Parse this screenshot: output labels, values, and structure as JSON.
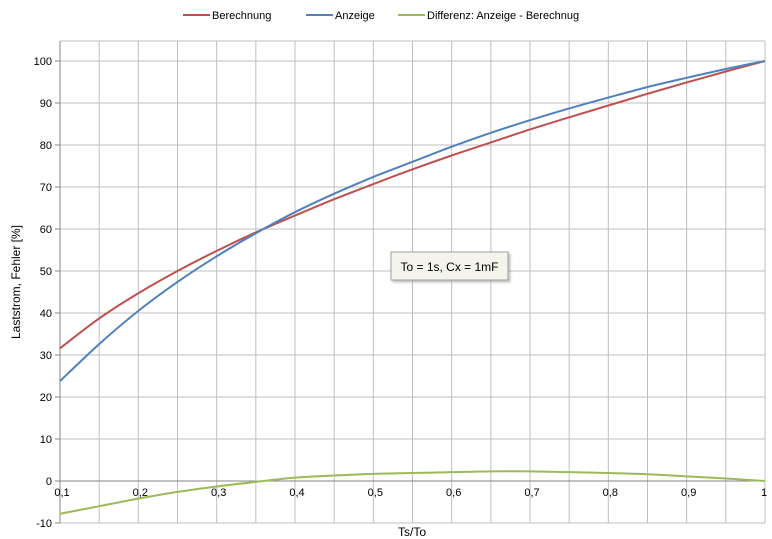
{
  "chart_data": {
    "type": "line",
    "xlabel": "Ts/To",
    "ylabel": "Laststrom, Fehler [%]",
    "xlim": [
      0.1,
      1.0
    ],
    "ylim": [
      -10,
      105
    ],
    "x_major_ticks": [
      0.1,
      0.2,
      0.3,
      0.4,
      0.5,
      0.6,
      0.7,
      0.8,
      0.9,
      1.0
    ],
    "x_tick_labels": [
      "0,1",
      "0,2",
      "0,3",
      "0,4",
      "0,5",
      "0,6",
      "0,7",
      "0,8",
      "0,9",
      "1"
    ],
    "y_ticks": [
      -10,
      0,
      10,
      20,
      30,
      40,
      50,
      60,
      70,
      80,
      90,
      100
    ],
    "y_tick_labels": [
      "-10",
      "0",
      "10",
      "20",
      "30",
      "40",
      "50",
      "60",
      "70",
      "80",
      "90",
      "100"
    ],
    "x_minor_gridlines": [
      0.15,
      0.25,
      0.35,
      0.45,
      0.55,
      0.65,
      0.75,
      0.85,
      0.95
    ],
    "grid": true,
    "legend_position": "top",
    "annotation": "To = 1s, Cx = 1mF",
    "x": [
      0.1,
      0.15,
      0.2,
      0.25,
      0.3,
      0.35,
      0.4,
      0.45,
      0.5,
      0.55,
      0.6,
      0.65,
      0.7,
      0.75,
      0.8,
      0.85,
      0.9,
      0.95,
      1.0
    ],
    "series": [
      {
        "name": "Berechnung",
        "color": "#c0504d",
        "values": [
          31.6,
          38.7,
          44.7,
          50.0,
          54.8,
          59.2,
          63.2,
          67.1,
          70.7,
          74.2,
          77.5,
          80.6,
          83.7,
          86.6,
          89.4,
          92.2,
          94.9,
          97.5,
          100.0
        ]
      },
      {
        "name": "Anzeige",
        "color": "#4f81bd",
        "values": [
          23.8,
          32.6,
          40.5,
          47.4,
          53.5,
          59.0,
          64.0,
          68.4,
          72.4,
          76.0,
          79.6,
          82.9,
          85.9,
          88.7,
          91.3,
          93.8,
          96.0,
          98.1,
          100.0
        ]
      },
      {
        "name": "Differenz: Anzeige - Berechnug",
        "color": "#9bbb59",
        "values": [
          -7.8,
          -6.0,
          -4.2,
          -2.6,
          -1.3,
          -0.2,
          0.8,
          1.3,
          1.7,
          1.9,
          2.1,
          2.3,
          2.3,
          2.1,
          1.9,
          1.6,
          1.1,
          0.6,
          0.0
        ]
      }
    ]
  }
}
